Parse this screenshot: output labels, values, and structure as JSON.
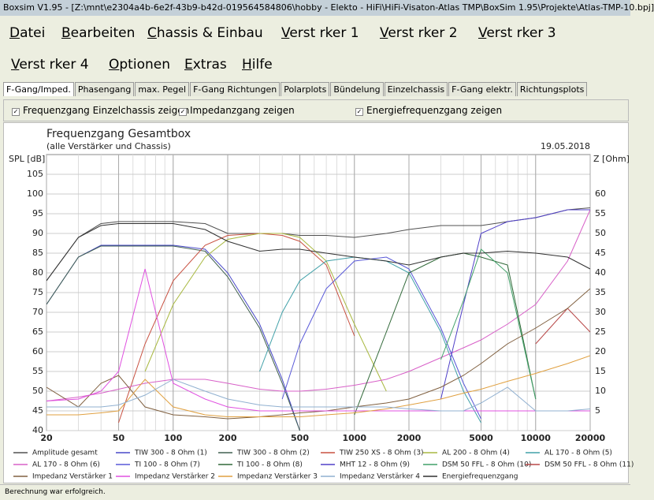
{
  "window_title": "Boxsim V1.95 - [Z:\\mnt\\e2304a4b-6e2f-43b9-b42d-019564584806\\hobby - Elekto - HiFi\\HiFi-Visaton-Atlas TMP\\BoxSim 1.95\\Projekte\\Atlas-TMP-10.bpj]",
  "menu": [
    "Datei",
    "Bearbeiten",
    "Chassis & Einbau",
    "Verst rker 1",
    "Verst rker 2",
    "Verst rker 3",
    "Verst rker 4",
    "Optionen",
    "Extras",
    "Hilfe"
  ],
  "tabs": [
    "F-Gang/Imped.",
    "Phasengang",
    "max. Pegel",
    "F-Gang Richtungen",
    "Polarplots",
    "Bündelung",
    "Einzelchassis",
    "F-Gang elektr.",
    "Richtungsplots"
  ],
  "checkboxes": [
    "Frequenzgang Einzelchassis zeigen",
    "Impedanzgang zeigen",
    "Energiefrequenzgang zeigen"
  ],
  "status": "Berechnung war erfolgreich.",
  "chart_data": {
    "type": "line",
    "title": "Frequenzgang Gesamtbox",
    "subtitle": "(alle Verstärker und Chassis)",
    "date": "19.05.2018",
    "y_label": "SPL [dB]",
    "y2_label": "Z [Ohm]",
    "log_x": true,
    "grid": true,
    "x": [
      20,
      30,
      40,
      50,
      70,
      100,
      150,
      200,
      300,
      400,
      500,
      700,
      1000,
      1500,
      2000,
      3000,
      4000,
      5000,
      7000,
      10000,
      15000,
      20000
    ],
    "xlim": [
      20,
      20000
    ],
    "xticks": [
      20,
      50,
      100,
      200,
      500,
      1000,
      2000,
      5000,
      10000,
      20000
    ],
    "ylim": [
      40,
      110
    ],
    "yticks": [
      40,
      45,
      50,
      55,
      60,
      65,
      70,
      75,
      80,
      85,
      90,
      95,
      100,
      105
    ],
    "y2lim": [
      0,
      70
    ],
    "y2ticks": [
      5,
      10,
      15,
      20,
      25,
      30,
      35,
      40,
      45,
      50,
      55,
      60
    ],
    "series": [
      {
        "name": "Amplitude gesamt",
        "color": "#505050",
        "values": [
          78,
          89,
          92.5,
          93,
          93,
          93,
          92.5,
          90,
          90,
          90,
          89.5,
          89.5,
          89,
          90,
          91,
          92,
          92,
          92,
          93,
          94,
          96,
          96.5
        ]
      },
      {
        "name": "TIW 300 - 8 Ohm (1)",
        "color": "#4848c8",
        "values": [
          72,
          84,
          87,
          87,
          87,
          87,
          86,
          80,
          67,
          53,
          40,
          null,
          null,
          null,
          null,
          null,
          null,
          null,
          null,
          null,
          null,
          null
        ]
      },
      {
        "name": "TIW 300 - 8 Ohm (2)",
        "color": "#406050",
        "values": [
          72,
          84,
          86.8,
          86.8,
          86.8,
          86.8,
          85.5,
          79,
          66,
          52,
          40,
          null,
          null,
          null,
          null,
          null,
          null,
          null,
          null,
          null,
          null,
          null
        ]
      },
      {
        "name": "TIW 250 XS - 8 Ohm (3)",
        "color": "#c85040",
        "values": [
          null,
          null,
          null,
          42,
          62,
          78,
          87,
          89.5,
          90,
          89.5,
          88,
          82,
          64,
          null,
          null,
          null,
          null,
          null,
          null,
          null,
          null,
          null
        ]
      },
      {
        "name": "AL 200 - 8 Ohm (4)",
        "color": "#a8b840",
        "values": [
          null,
          null,
          null,
          null,
          55,
          72,
          84,
          88.5,
          90,
          90,
          89,
          83,
          67,
          50,
          null,
          null,
          null,
          null,
          null,
          null,
          null,
          null
        ]
      },
      {
        "name": "AL 170 - 8 Ohm (5)",
        "color": "#40a0a8",
        "values": [
          null,
          null,
          null,
          null,
          null,
          null,
          null,
          null,
          55,
          70,
          78,
          83,
          84,
          83,
          80,
          65,
          50,
          42,
          null,
          null,
          null,
          null
        ]
      },
      {
        "name": "AL 170 - 8 Ohm (6)",
        "color": "#d860c8",
        "values": [
          47.5,
          48.5,
          49.5,
          50.5,
          52,
          53,
          53,
          52,
          50.5,
          50,
          50,
          50.5,
          51.5,
          53,
          55,
          58.5,
          61,
          63,
          67,
          72,
          83,
          96
        ]
      },
      {
        "name": "TI 100 - 8 Ohm (7)",
        "color": "#5858d8",
        "values": [
          null,
          null,
          null,
          null,
          null,
          null,
          null,
          null,
          null,
          48,
          62,
          76,
          83,
          84,
          81,
          66,
          52,
          43,
          null,
          null,
          null,
          null
        ]
      },
      {
        "name": "TI 100 - 8 Ohm (8)",
        "color": "#306838",
        "values": [
          null,
          null,
          null,
          null,
          null,
          null,
          null,
          null,
          null,
          null,
          null,
          null,
          44,
          65,
          80,
          84,
          85,
          84,
          82,
          48,
          null,
          null
        ]
      },
      {
        "name": "MHT 12 - 8 Ohm (9)",
        "color": "#5040c8",
        "values": [
          null,
          null,
          null,
          null,
          null,
          null,
          null,
          null,
          null,
          null,
          null,
          null,
          null,
          null,
          null,
          48,
          72,
          90,
          93,
          94,
          96,
          96
        ]
      },
      {
        "name": "DSM 50 FFL - 8 Ohm (10)",
        "color": "#40a068",
        "values": [
          null,
          null,
          null,
          null,
          null,
          null,
          null,
          null,
          null,
          null,
          null,
          null,
          null,
          null,
          null,
          58,
          73,
          86,
          80,
          48,
          null,
          null
        ]
      },
      {
        "name": "DSM 50 FFL - 8 Ohm (11)",
        "color": "#b84848",
        "values": [
          null,
          null,
          null,
          null,
          null,
          null,
          null,
          null,
          null,
          null,
          null,
          null,
          null,
          null,
          null,
          null,
          null,
          null,
          null,
          62,
          71,
          65
        ]
      },
      {
        "name": "Impedanz Verstärker 1",
        "color": "#806040",
        "axis": "y2",
        "values": [
          11,
          6,
          12,
          14,
          6,
          4,
          3.5,
          3,
          3.5,
          4,
          4.5,
          5,
          6,
          7,
          8,
          11,
          14,
          17,
          22,
          26,
          31,
          36
        ]
      },
      {
        "name": "Impedanz Verstärker 2",
        "color": "#e050e0",
        "axis": "y2",
        "values": [
          7.5,
          8,
          10,
          15,
          41,
          12,
          8,
          6,
          5,
          5,
          5,
          5,
          5,
          5,
          5,
          5,
          5,
          5,
          5,
          5,
          5,
          5
        ]
      },
      {
        "name": "Impedanz Verstärker 3",
        "color": "#e0a040",
        "axis": "y2",
        "values": [
          4,
          4,
          4.5,
          5,
          13,
          6,
          4,
          3.5,
          3.5,
          3.5,
          3.5,
          4,
          4.5,
          5.5,
          6.5,
          8,
          9.5,
          10.5,
          12.5,
          14.5,
          17,
          19
        ]
      },
      {
        "name": "Impedanz Verstärker 4",
        "color": "#90b0d0",
        "axis": "y2",
        "values": [
          6,
          6,
          6,
          6.5,
          9,
          13,
          10,
          8,
          6.5,
          6,
          6,
          6,
          6,
          6,
          5.5,
          5,
          5,
          7,
          11,
          5,
          5,
          5.5
        ]
      },
      {
        "name": "Energiefrequenzgang",
        "color": "#303030",
        "values": [
          78,
          89,
          92,
          92.5,
          92.5,
          92.5,
          91,
          88,
          85.5,
          86,
          86,
          85,
          84,
          83,
          82,
          84,
          85,
          85,
          85.5,
          85,
          84,
          81
        ]
      }
    ]
  }
}
